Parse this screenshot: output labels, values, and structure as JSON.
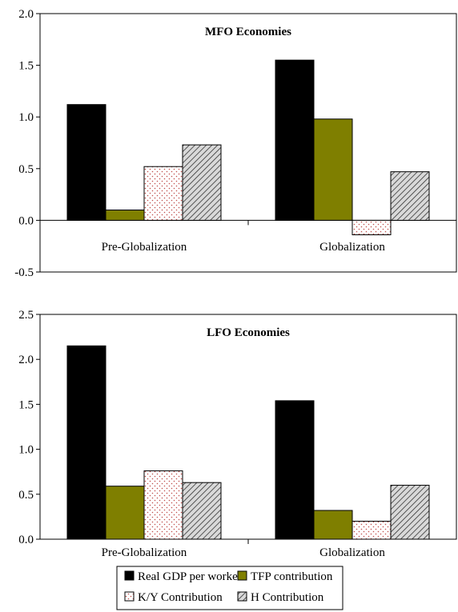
{
  "chart_data": [
    {
      "type": "bar",
      "title": "MFO Economies",
      "categories": [
        "Pre-Globalization",
        "Globalization"
      ],
      "ylim": [
        -0.5,
        2.0
      ],
      "yticks": [
        "2.0",
        "1.5",
        "1.0",
        "0.5",
        "0.0",
        "-0.5"
      ],
      "grid": false,
      "series": [
        {
          "name": "Real GDP per worker",
          "values": [
            1.12,
            1.55
          ]
        },
        {
          "name": "TFP contribution",
          "values": [
            0.1,
            0.98
          ]
        },
        {
          "name": "K/Y Contribution",
          "values": [
            0.52,
            -0.14
          ]
        },
        {
          "name": "H Contribution",
          "values": [
            0.73,
            0.47
          ]
        }
      ]
    },
    {
      "type": "bar",
      "title": "LFO Economies",
      "categories": [
        "Pre-Globalization",
        "Globalization"
      ],
      "ylim": [
        0.0,
        2.5
      ],
      "yticks": [
        "2.5",
        "2.0",
        "1.5",
        "1.0",
        "0.5",
        "0.0"
      ],
      "grid": false,
      "series": [
        {
          "name": "Real GDP per worker",
          "values": [
            2.15,
            1.54
          ]
        },
        {
          "name": "TFP contribution",
          "values": [
            0.59,
            0.32
          ]
        },
        {
          "name": "K/Y Contribution",
          "values": [
            0.76,
            0.2
          ]
        },
        {
          "name": "H Contribution",
          "values": [
            0.63,
            0.6
          ]
        }
      ]
    }
  ],
  "legend": {
    "placement": "bottom-center",
    "items": [
      {
        "label": "Real GDP per worker",
        "fill": "black"
      },
      {
        "label": "TFP contribution",
        "fill": "olive"
      },
      {
        "label": "K/Y Contribution",
        "fill": "dots"
      },
      {
        "label": "H Contribution",
        "fill": "hatch"
      }
    ]
  },
  "colors": {
    "black": "#000000",
    "olive": "#7f7f00",
    "dots": "#c0504d",
    "hatch": "#555555"
  }
}
